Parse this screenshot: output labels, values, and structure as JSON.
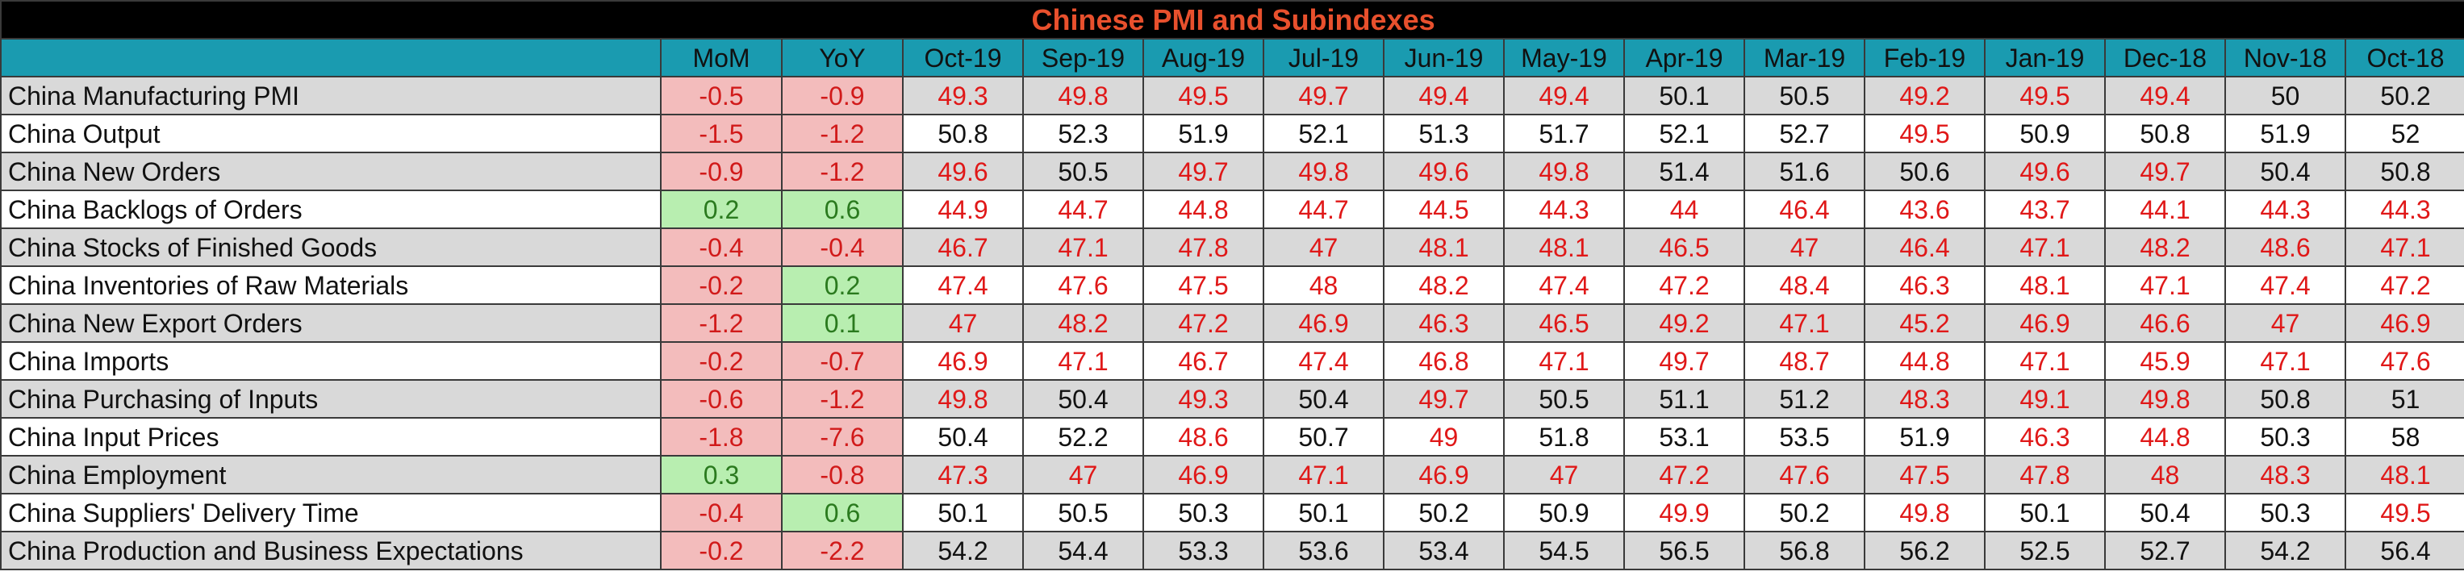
{
  "title": "Chinese PMI and Subindexes",
  "columns": [
    "MoM",
    "YoY",
    "Oct-19",
    "Sep-19",
    "Aug-19",
    "Jul-19",
    "Jun-19",
    "May-19",
    "Apr-19",
    "Mar-19",
    "Feb-19",
    "Jan-19",
    "Dec-18",
    "Nov-18",
    "Oct-18"
  ],
  "rows": [
    {
      "name": "China Manufacturing PMI",
      "mom": "-0.5",
      "yoy": "-0.9",
      "values": [
        "49.3",
        "49.8",
        "49.5",
        "49.7",
        "49.4",
        "49.4",
        "50.1",
        "50.5",
        "49.2",
        "49.5",
        "49.4",
        "50",
        "50.2"
      ],
      "red": [
        true,
        true,
        true,
        true,
        true,
        true,
        false,
        false,
        true,
        true,
        true,
        false,
        false
      ]
    },
    {
      "name": "China Output",
      "mom": "-1.5",
      "yoy": "-1.2",
      "values": [
        "50.8",
        "52.3",
        "51.9",
        "52.1",
        "51.3",
        "51.7",
        "52.1",
        "52.7",
        "49.5",
        "50.9",
        "50.8",
        "51.9",
        "52"
      ],
      "red": [
        false,
        false,
        false,
        false,
        false,
        false,
        false,
        false,
        true,
        false,
        false,
        false,
        false
      ]
    },
    {
      "name": "China New Orders",
      "mom": "-0.9",
      "yoy": "-1.2",
      "values": [
        "49.6",
        "50.5",
        "49.7",
        "49.8",
        "49.6",
        "49.8",
        "51.4",
        "51.6",
        "50.6",
        "49.6",
        "49.7",
        "50.4",
        "50.8"
      ],
      "red": [
        true,
        false,
        true,
        true,
        true,
        true,
        false,
        false,
        false,
        true,
        true,
        false,
        false
      ]
    },
    {
      "name": "China Backlogs of Orders",
      "mom": "0.2",
      "yoy": "0.6",
      "values": [
        "44.9",
        "44.7",
        "44.8",
        "44.7",
        "44.5",
        "44.3",
        "44",
        "46.4",
        "43.6",
        "43.7",
        "44.1",
        "44.3",
        "44.3"
      ],
      "red": [
        true,
        true,
        true,
        true,
        true,
        true,
        true,
        true,
        true,
        true,
        true,
        true,
        true
      ]
    },
    {
      "name": "China Stocks of Finished Goods",
      "mom": "-0.4",
      "yoy": "-0.4",
      "values": [
        "46.7",
        "47.1",
        "47.8",
        "47",
        "48.1",
        "48.1",
        "46.5",
        "47",
        "46.4",
        "47.1",
        "48.2",
        "48.6",
        "47.1"
      ],
      "red": [
        true,
        true,
        true,
        true,
        true,
        true,
        true,
        true,
        true,
        true,
        true,
        true,
        true
      ]
    },
    {
      "name": "China Inventories of Raw Materials",
      "mom": "-0.2",
      "yoy": "0.2",
      "values": [
        "47.4",
        "47.6",
        "47.5",
        "48",
        "48.2",
        "47.4",
        "47.2",
        "48.4",
        "46.3",
        "48.1",
        "47.1",
        "47.4",
        "47.2"
      ],
      "red": [
        true,
        true,
        true,
        true,
        true,
        true,
        true,
        true,
        true,
        true,
        true,
        true,
        true
      ]
    },
    {
      "name": "China New Export Orders",
      "mom": "-1.2",
      "yoy": "0.1",
      "values": [
        "47",
        "48.2",
        "47.2",
        "46.9",
        "46.3",
        "46.5",
        "49.2",
        "47.1",
        "45.2",
        "46.9",
        "46.6",
        "47",
        "46.9"
      ],
      "red": [
        true,
        true,
        true,
        true,
        true,
        true,
        true,
        true,
        true,
        true,
        true,
        true,
        true
      ]
    },
    {
      "name": "China Imports",
      "mom": "-0.2",
      "yoy": "-0.7",
      "values": [
        "46.9",
        "47.1",
        "46.7",
        "47.4",
        "46.8",
        "47.1",
        "49.7",
        "48.7",
        "44.8",
        "47.1",
        "45.9",
        "47.1",
        "47.6"
      ],
      "red": [
        true,
        true,
        true,
        true,
        true,
        true,
        true,
        true,
        true,
        true,
        true,
        true,
        true
      ]
    },
    {
      "name": "China Purchasing of Inputs",
      "mom": "-0.6",
      "yoy": "-1.2",
      "values": [
        "49.8",
        "50.4",
        "49.3",
        "50.4",
        "49.7",
        "50.5",
        "51.1",
        "51.2",
        "48.3",
        "49.1",
        "49.8",
        "50.8",
        "51"
      ],
      "red": [
        true,
        false,
        true,
        false,
        true,
        false,
        false,
        false,
        true,
        true,
        true,
        false,
        false
      ]
    },
    {
      "name": "China Input Prices",
      "mom": "-1.8",
      "yoy": "-7.6",
      "values": [
        "50.4",
        "52.2",
        "48.6",
        "50.7",
        "49",
        "51.8",
        "53.1",
        "53.5",
        "51.9",
        "46.3",
        "44.8",
        "50.3",
        "58"
      ],
      "red": [
        false,
        false,
        true,
        false,
        true,
        false,
        false,
        false,
        false,
        true,
        true,
        false,
        false
      ]
    },
    {
      "name": "China Employment",
      "mom": "0.3",
      "yoy": "-0.8",
      "values": [
        "47.3",
        "47",
        "46.9",
        "47.1",
        "46.9",
        "47",
        "47.2",
        "47.6",
        "47.5",
        "47.8",
        "48",
        "48.3",
        "48.1"
      ],
      "red": [
        true,
        true,
        true,
        true,
        true,
        true,
        true,
        true,
        true,
        true,
        true,
        true,
        true
      ]
    },
    {
      "name": "China Suppliers' Delivery Time",
      "mom": "-0.4",
      "yoy": "0.6",
      "values": [
        "50.1",
        "50.5",
        "50.3",
        "50.1",
        "50.2",
        "50.9",
        "49.9",
        "50.2",
        "49.8",
        "50.1",
        "50.4",
        "50.3",
        "49.5"
      ],
      "red": [
        false,
        false,
        false,
        false,
        false,
        false,
        true,
        false,
        true,
        false,
        false,
        false,
        true
      ]
    },
    {
      "name": "China Production and Business Expectations",
      "mom": "-0.2",
      "yoy": "-2.2",
      "values": [
        "54.2",
        "54.4",
        "53.3",
        "53.6",
        "53.4",
        "54.5",
        "56.5",
        "56.8",
        "56.2",
        "52.5",
        "52.7",
        "54.2",
        "56.4"
      ],
      "red": [
        false,
        false,
        false,
        false,
        false,
        false,
        false,
        false,
        false,
        false,
        false,
        false,
        false
      ]
    }
  ],
  "colors": {
    "title_bg": "#000000",
    "title_text": "#e8502d",
    "header_bg": "#1a9bb0",
    "negative_bg": "#f3bcbc",
    "positive_bg": "#b8eeb0",
    "red_value": "#e01818",
    "stripe": "#d9d9d9"
  }
}
